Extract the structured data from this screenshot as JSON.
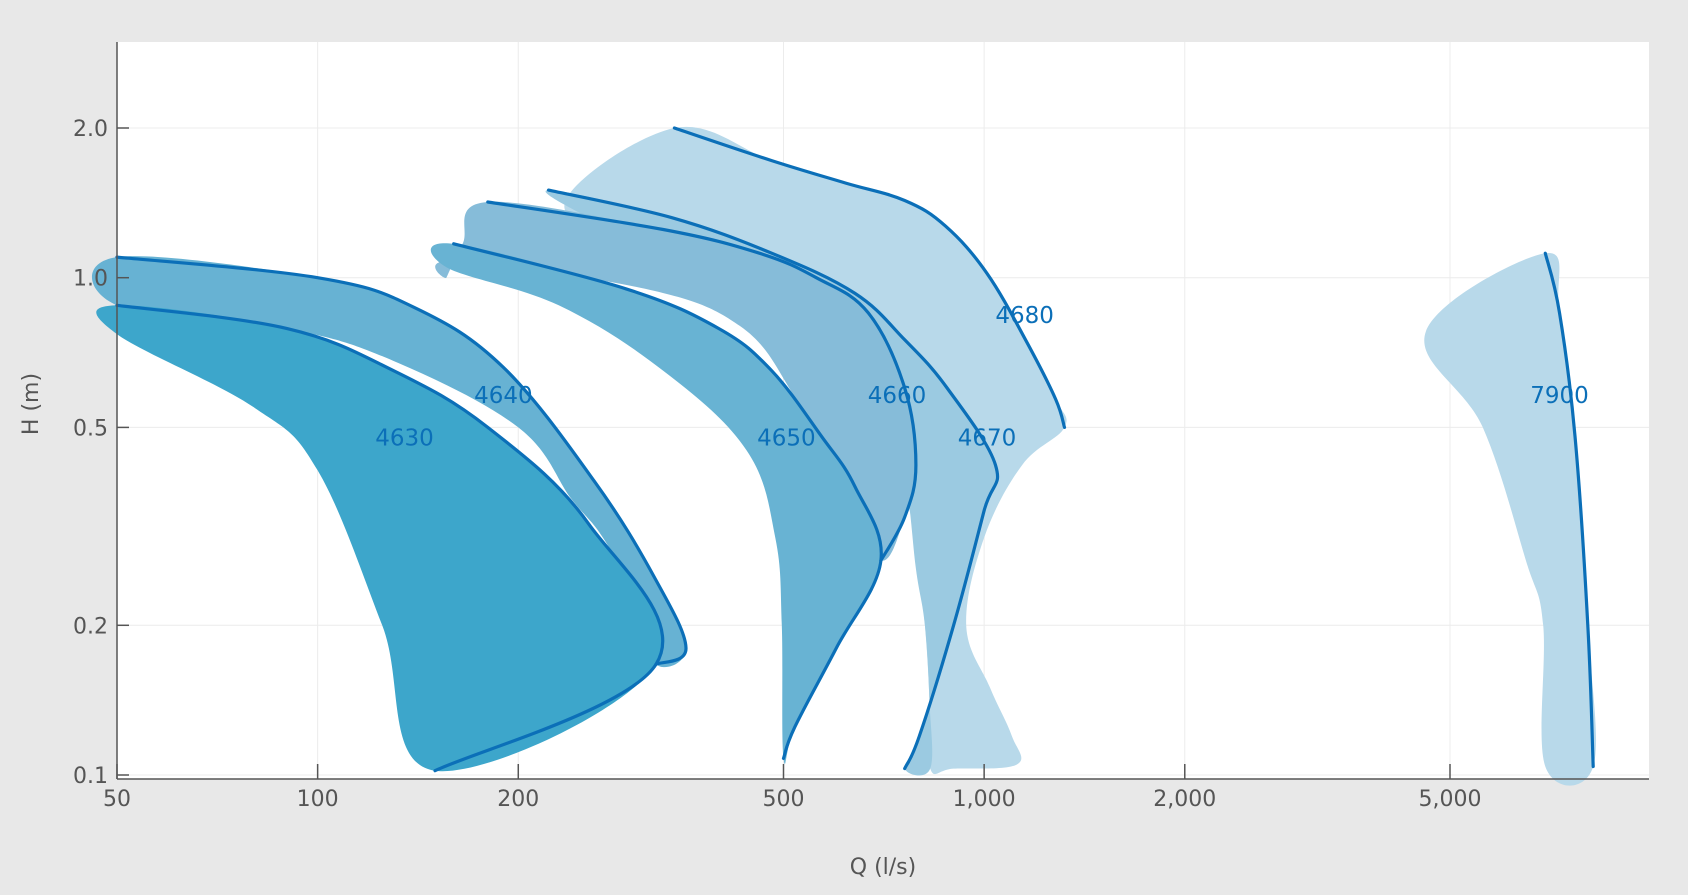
{
  "chart_data": {
    "type": "area",
    "xlabel": "Q (l/s)",
    "ylabel": "H (m)",
    "x_scale": "log",
    "y_scale": "log",
    "xlim": [
      50,
      8500
    ],
    "ylim": [
      0.1,
      3.0
    ],
    "grid": true,
    "x_ticks": [
      {
        "value": 50,
        "label": "50"
      },
      {
        "value": 100,
        "label": "100"
      },
      {
        "value": 200,
        "label": "200"
      },
      {
        "value": 500,
        "label": "500"
      },
      {
        "value": 1000,
        "label": "1,000"
      },
      {
        "value": 2000,
        "label": "2,000"
      },
      {
        "value": 5000,
        "label": "5,000"
      }
    ],
    "y_ticks": [
      {
        "value": 0.1,
        "label": "0.1"
      },
      {
        "value": 0.2,
        "label": "0.2"
      },
      {
        "value": 0.5,
        "label": "0.5"
      },
      {
        "value": 1.0,
        "label": "1.0"
      },
      {
        "value": 2.0,
        "label": "2.0"
      }
    ],
    "colors": {
      "c4630": "#3da6cb",
      "c4640": "#67b2d3",
      "c4650": "#68b3d3",
      "c4660": "#86bcd9",
      "c4670": "#9bcae1",
      "c4680": "#b8d9ea",
      "c7900": "#b8d9ea",
      "outline": "#0b6fb8",
      "label": "#0b6fb8"
    },
    "series": [
      {
        "name": "4680",
        "fill_color_key": "c4680",
        "label_pos": [
          1150,
          0.81
        ],
        "outline": [
          [
            343,
            2.0
          ],
          [
            480,
            1.72
          ],
          [
            620,
            1.55
          ],
          [
            760,
            1.43
          ],
          [
            875,
            1.27
          ],
          [
            1010,
            1.02
          ],
          [
            1160,
            0.74
          ],
          [
            1280,
            0.57
          ],
          [
            1320,
            0.5
          ]
        ],
        "area": [
          [
            343,
            2.0
          ],
          [
            480,
            1.72
          ],
          [
            620,
            1.55
          ],
          [
            760,
            1.43
          ],
          [
            875,
            1.27
          ],
          [
            1010,
            1.02
          ],
          [
            1160,
            0.74
          ],
          [
            1280,
            0.57
          ],
          [
            1320,
            0.5
          ],
          [
            1140,
            0.42
          ],
          [
            1000,
            0.3
          ],
          [
            940,
            0.2
          ],
          [
            1020,
            0.15
          ],
          [
            1100,
            0.12
          ],
          [
            1120,
            0.105
          ],
          [
            900,
            0.103
          ],
          [
            830,
            0.103
          ],
          [
            828,
            0.14
          ],
          [
            815,
            0.2
          ],
          [
            790,
            0.3
          ],
          [
            700,
            0.5
          ],
          [
            560,
            0.75
          ],
          [
            420,
            0.95
          ],
          [
            300,
            1.15
          ],
          [
            235,
            1.42
          ]
        ]
      },
      {
        "name": "4670",
        "fill_color_key": "c4670",
        "label_pos": [
          1010,
          0.46
        ],
        "outline": [
          [
            222,
            1.5
          ],
          [
            340,
            1.32
          ],
          [
            480,
            1.12
          ],
          [
            640,
            0.93
          ],
          [
            760,
            0.75
          ],
          [
            880,
            0.6
          ],
          [
            1040,
            0.42
          ],
          [
            1000,
            0.34
          ],
          [
            900,
            0.2
          ],
          [
            800,
            0.12
          ],
          [
            760,
            0.103
          ]
        ],
        "area": [
          [
            222,
            1.5
          ],
          [
            340,
            1.32
          ],
          [
            480,
            1.12
          ],
          [
            640,
            0.93
          ],
          [
            760,
            0.75
          ],
          [
            880,
            0.6
          ],
          [
            1040,
            0.42
          ],
          [
            1000,
            0.34
          ],
          [
            900,
            0.2
          ],
          [
            800,
            0.12
          ],
          [
            760,
            0.103
          ],
          [
            830,
            0.103
          ],
          [
            828,
            0.14
          ],
          [
            815,
            0.2
          ],
          [
            790,
            0.26
          ],
          [
            760,
            0.4
          ],
          [
            700,
            0.6
          ],
          [
            600,
            0.8
          ],
          [
            440,
            1.0
          ],
          [
            330,
            1.1
          ],
          [
            260,
            1.3
          ]
        ]
      },
      {
        "name": "4660",
        "fill_color_key": "c4660",
        "label_pos": [
          740,
          0.56
        ],
        "outline": [
          [
            180,
            1.42
          ],
          [
            330,
            1.25
          ],
          [
            460,
            1.12
          ],
          [
            560,
            1.0
          ],
          [
            670,
            0.85
          ],
          [
            760,
            0.6
          ],
          [
            790,
            0.42
          ],
          [
            760,
            0.33
          ],
          [
            700,
            0.27
          ]
        ],
        "area": [
          [
            180,
            1.42
          ],
          [
            330,
            1.25
          ],
          [
            460,
            1.12
          ],
          [
            560,
            1.0
          ],
          [
            670,
            0.85
          ],
          [
            760,
            0.6
          ],
          [
            790,
            0.42
          ],
          [
            760,
            0.33
          ],
          [
            700,
            0.27
          ],
          [
            620,
            0.36
          ],
          [
            560,
            0.45
          ],
          [
            510,
            0.6
          ],
          [
            430,
            0.8
          ],
          [
            310,
            0.95
          ],
          [
            160,
            1.08
          ],
          [
            156,
            1.0
          ],
          [
            165,
            1.17
          ]
        ]
      },
      {
        "name": "4650",
        "fill_color_key": "c4650",
        "label_pos": [
          505,
          0.46
        ],
        "outline": [
          [
            160,
            1.17
          ],
          [
            290,
            0.95
          ],
          [
            400,
            0.79
          ],
          [
            480,
            0.65
          ],
          [
            570,
            0.48
          ],
          [
            640,
            0.38
          ],
          [
            700,
            0.27
          ],
          [
            600,
            0.18
          ],
          [
            520,
            0.125
          ],
          [
            500,
            0.108
          ]
        ],
        "area": [
          [
            160,
            1.17
          ],
          [
            290,
            0.95
          ],
          [
            400,
            0.79
          ],
          [
            480,
            0.65
          ],
          [
            570,
            0.48
          ],
          [
            640,
            0.38
          ],
          [
            700,
            0.27
          ],
          [
            600,
            0.18
          ],
          [
            520,
            0.125
          ],
          [
            500,
            0.108
          ],
          [
            497,
            0.2
          ],
          [
            486,
            0.3
          ],
          [
            440,
            0.45
          ],
          [
            330,
            0.65
          ],
          [
            230,
            0.88
          ],
          [
            156,
            1.05
          ]
        ]
      },
      {
        "name": "4640",
        "fill_color_key": "c4640",
        "label_pos": [
          190,
          0.56
        ],
        "outline": [
          [
            50,
            1.1
          ],
          [
            100,
            1.0
          ],
          [
            140,
            0.87
          ],
          [
            190,
            0.66
          ],
          [
            260,
            0.39
          ],
          [
            320,
            0.25
          ],
          [
            357,
            0.18
          ],
          [
            322,
            0.167
          ]
        ],
        "area": [
          [
            50,
            1.1
          ],
          [
            100,
            1.0
          ],
          [
            140,
            0.87
          ],
          [
            190,
            0.66
          ],
          [
            260,
            0.39
          ],
          [
            320,
            0.25
          ],
          [
            357,
            0.18
          ],
          [
            322,
            0.167
          ],
          [
            305,
            0.22
          ],
          [
            268,
            0.3
          ],
          [
            240,
            0.36
          ],
          [
            200,
            0.5
          ],
          [
            130,
            0.68
          ],
          [
            90,
            0.79
          ],
          [
            50,
            0.88
          ]
        ]
      },
      {
        "name": "4630",
        "fill_color_key": "c4630",
        "label_pos": [
          135,
          0.46
        ],
        "outline": [
          [
            50,
            0.88
          ],
          [
            90,
            0.79
          ],
          [
            130,
            0.65
          ],
          [
            180,
            0.5
          ],
          [
            255,
            0.32
          ],
          [
            322,
            0.167
          ],
          [
            150,
            0.102
          ]
        ],
        "area": [
          [
            50,
            0.88
          ],
          [
            90,
            0.79
          ],
          [
            130,
            0.65
          ],
          [
            180,
            0.5
          ],
          [
            255,
            0.32
          ],
          [
            322,
            0.167
          ],
          [
            150,
            0.102
          ],
          [
            125,
            0.2
          ],
          [
            100,
            0.41
          ],
          [
            80,
            0.55
          ],
          [
            50,
            0.77
          ]
        ]
      },
      {
        "name": "7900",
        "fill_color_key": "c7900",
        "label_pos": [
          7300,
          0.56
        ],
        "outline": [
          [
            6950,
            1.12
          ],
          [
            7300,
            0.85
          ],
          [
            7700,
            0.48
          ],
          [
            8050,
            0.2
          ],
          [
            8200,
            0.104
          ]
        ],
        "area": [
          [
            6950,
            1.12
          ],
          [
            7300,
            0.85
          ],
          [
            7700,
            0.48
          ],
          [
            8050,
            0.2
          ],
          [
            8200,
            0.104
          ],
          [
            6950,
            0.104
          ],
          [
            6900,
            0.2
          ],
          [
            6500,
            0.27
          ],
          [
            5600,
            0.5
          ],
          [
            4600,
            0.78
          ]
        ]
      }
    ]
  }
}
